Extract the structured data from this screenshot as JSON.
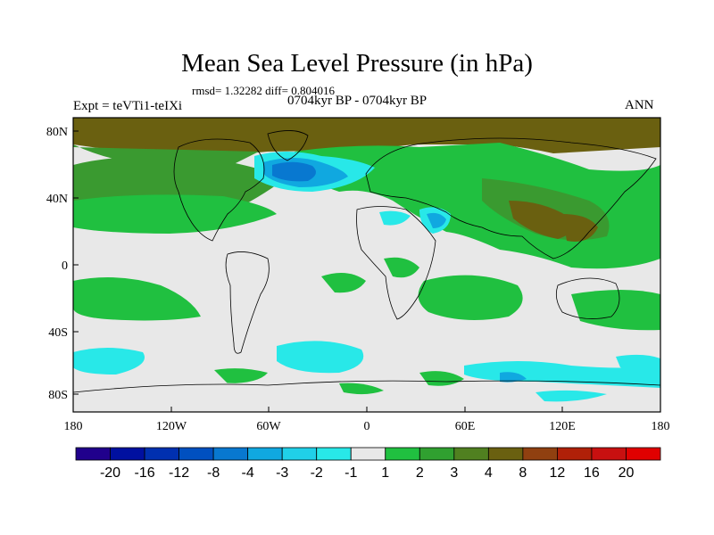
{
  "title": "Mean Sea Level Pressure (in hPa)",
  "stats_text": "rmsd= 1.32282 diff= 0.804016",
  "period_text": "0704kyr BP - 0704kyr BP",
  "experiment_text": "Expt = teVTi1-teIXi",
  "season_text": "ANN",
  "lat_labels": [
    "80N",
    "40N",
    "0",
    "40S",
    "80S"
  ],
  "lon_labels": [
    "180",
    "120W",
    "60W",
    "0",
    "60E",
    "120E",
    "180"
  ],
  "colorbar": {
    "labels": [
      "-20",
      "-16",
      "-12",
      "-8",
      "-4",
      "-3",
      "-2",
      "-1",
      "1",
      "2",
      "3",
      "4",
      "8",
      "12",
      "16",
      "20"
    ],
    "colors": [
      "#20008c",
      "#0010a0",
      "#0030b0",
      "#0050c0",
      "#0878d0",
      "#10a8e0",
      "#20d0e8",
      "#28e8e8",
      "#e8e8e8",
      "#20c040",
      "#30a030",
      "#508020",
      "#6a6010",
      "#904010",
      "#b02008",
      "#c81010",
      "#e00000"
    ]
  },
  "colors": {
    "neutral": "#e8e8e8",
    "green": "#20c040",
    "dark_green": "#3a9a30",
    "brown": "#6a6010",
    "cyan": "#28e8e8",
    "light_blue": "#10a8e0",
    "blue": "#0878d0"
  }
}
